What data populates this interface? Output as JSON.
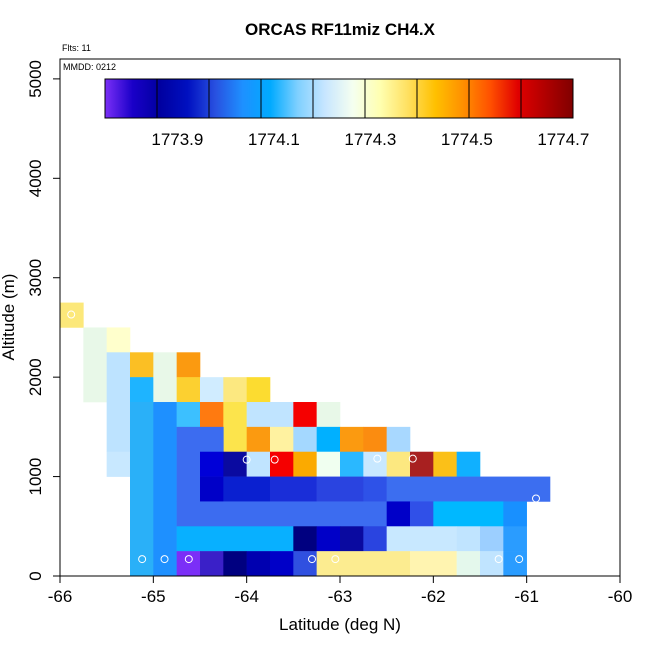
{
  "chart_data": {
    "type": "heatmap",
    "title": "ORCAS RF11miz CH4.X",
    "xlabel": "Latitude (deg N)",
    "ylabel": "Altitude (m)",
    "annotations": {
      "flights": "Flts: 11",
      "date": "MMDD: 0212"
    },
    "xlim": [
      -66,
      -60
    ],
    "ylim": [
      0,
      5200
    ],
    "xticks": [
      -66,
      -65,
      -64,
      -63,
      -62,
      -61,
      -60
    ],
    "yticks": [
      0,
      1000,
      2000,
      3000,
      4000,
      5000
    ],
    "colorbar": {
      "range": [
        1773.75,
        1774.72
      ],
      "ticks": [
        1773.9,
        1774.1,
        1774.3,
        1774.5,
        1774.7
      ],
      "tick_labels": [
        "1773.9",
        "1774.1",
        "1774.3",
        "1774.5",
        "1774.7"
      ],
      "colors": [
        "#7b2ff7",
        "#1a00c8",
        "#0000a0",
        "#0010c0",
        "#2850e0",
        "#1e90ff",
        "#00aaff",
        "#7fd0ff",
        "#c8e6ff",
        "#f5fff0",
        "#ffffb0",
        "#ffe060",
        "#ffc000",
        "#ff9000",
        "#ff5000",
        "#e00000",
        "#b00000",
        "#800000"
      ]
    },
    "cells": [
      {
        "lat": [
          -66.0,
          -65.75
        ],
        "alt": [
          2500,
          2750
        ],
        "color": "#fce87a"
      },
      {
        "lat": [
          -65.75,
          -65.5
        ],
        "alt": [
          1750,
          2500
        ],
        "color": "#e8f8e8"
      },
      {
        "lat": [
          -65.5,
          -65.25
        ],
        "alt": [
          2250,
          2500
        ],
        "color": "#ffffcc"
      },
      {
        "lat": [
          -65.5,
          -65.25
        ],
        "alt": [
          1250,
          2250
        ],
        "color": "#bde3ff"
      },
      {
        "lat": [
          -65.5,
          -65.25
        ],
        "alt": [
          1000,
          1250
        ],
        "color": "#c8e8ff"
      },
      {
        "lat": [
          -65.25,
          -65.0
        ],
        "alt": [
          2000,
          2250
        ],
        "color": "#fbbf24"
      },
      {
        "lat": [
          -65.25,
          -65.0
        ],
        "alt": [
          1750,
          2000
        ],
        "color": "#1eb4ff"
      },
      {
        "lat": [
          -65.25,
          -65.0
        ],
        "alt": [
          0,
          1750
        ],
        "color": "#2ab0f8"
      },
      {
        "lat": [
          -65.0,
          -64.75
        ],
        "alt": [
          2000,
          2250
        ],
        "color": "#e8f8e8"
      },
      {
        "lat": [
          -65.0,
          -64.75
        ],
        "alt": [
          1750,
          2000
        ],
        "color": "#e8f8e8"
      },
      {
        "lat": [
          -65.0,
          -64.75
        ],
        "alt": [
          0,
          1750
        ],
        "color": "#1e90ff"
      },
      {
        "lat": [
          -64.75,
          -64.5
        ],
        "alt": [
          2000,
          2250
        ],
        "color": "#fb9a10"
      },
      {
        "lat": [
          -64.75,
          -64.5
        ],
        "alt": [
          1750,
          2000
        ],
        "color": "#fcd030"
      },
      {
        "lat": [
          -64.75,
          -64.5
        ],
        "alt": [
          1500,
          1750
        ],
        "color": "#3cc0ff"
      },
      {
        "lat": [
          -64.5,
          -64.25
        ],
        "alt": [
          1750,
          2000
        ],
        "color": "#d0ecff"
      },
      {
        "lat": [
          -64.5,
          -64.25
        ],
        "alt": [
          1500,
          1750
        ],
        "color": "#ff7a10"
      },
      {
        "lat": [
          -64.25,
          -64.0
        ],
        "alt": [
          1750,
          2000
        ],
        "color": "#fce880"
      },
      {
        "lat": [
          -64.25,
          -64.0
        ],
        "alt": [
          1250,
          1750
        ],
        "color": "#fce44c"
      },
      {
        "lat": [
          -64.0,
          -63.75
        ],
        "alt": [
          1750,
          2000
        ],
        "color": "#fcdc30"
      },
      {
        "lat": [
          -64.0,
          -63.75
        ],
        "alt": [
          1500,
          1750
        ],
        "color": "#c0e4ff"
      },
      {
        "lat": [
          -64.0,
          -63.75
        ],
        "alt": [
          1250,
          1500
        ],
        "color": "#fb9a10"
      },
      {
        "lat": [
          -63.75,
          -63.5
        ],
        "alt": [
          1500,
          1750
        ],
        "color": "#c0e4ff"
      },
      {
        "lat": [
          -63.75,
          -63.5
        ],
        "alt": [
          1250,
          1500
        ],
        "color": "#fff2a0"
      },
      {
        "lat": [
          -63.5,
          -63.25
        ],
        "alt": [
          1500,
          1750
        ],
        "color": "#f50000"
      },
      {
        "lat": [
          -63.5,
          -63.25
        ],
        "alt": [
          1250,
          1500
        ],
        "color": "#a4d8ff"
      },
      {
        "lat": [
          -63.25,
          -63.0
        ],
        "alt": [
          1500,
          1750
        ],
        "color": "#e8f8e8"
      },
      {
        "lat": [
          -63.25,
          -63.0
        ],
        "alt": [
          1250,
          1500
        ],
        "color": "#00b0ff"
      },
      {
        "lat": [
          -63.0,
          -62.75
        ],
        "alt": [
          1250,
          1500
        ],
        "color": "#fb9a10"
      },
      {
        "lat": [
          -62.75,
          -62.5
        ],
        "alt": [
          1250,
          1500
        ],
        "color": "#fb8c10"
      },
      {
        "lat": [
          -62.5,
          -62.25
        ],
        "alt": [
          1250,
          1500
        ],
        "color": "#a8d8ff"
      },
      {
        "lat": [
          -64.75,
          -64.25
        ],
        "alt": [
          1250,
          1500
        ],
        "color": "#3c6cf0"
      },
      {
        "lat": [
          -64.75,
          -64.5
        ],
        "alt": [
          750,
          1250
        ],
        "color": "#3c6cf0"
      },
      {
        "lat": [
          -64.5,
          -64.25
        ],
        "alt": [
          1000,
          1250
        ],
        "color": "#0000d8"
      },
      {
        "lat": [
          -64.25,
          -64.0
        ],
        "alt": [
          1000,
          1250
        ],
        "color": "#0a0aa0"
      },
      {
        "lat": [
          -64.0,
          -63.75
        ],
        "alt": [
          1000,
          1250
        ],
        "color": "#c0e4ff"
      },
      {
        "lat": [
          -63.75,
          -63.5
        ],
        "alt": [
          1000,
          1250
        ],
        "color": "#f50000"
      },
      {
        "lat": [
          -63.5,
          -63.25
        ],
        "alt": [
          1000,
          1250
        ],
        "color": "#fbaa00"
      },
      {
        "lat": [
          -63.25,
          -63.0
        ],
        "alt": [
          1000,
          1250
        ],
        "color": "#f0fff0"
      },
      {
        "lat": [
          -63.0,
          -62.75
        ],
        "alt": [
          1000,
          1250
        ],
        "color": "#2ab8ff"
      },
      {
        "lat": [
          -62.75,
          -62.5
        ],
        "alt": [
          1000,
          1250
        ],
        "color": "#c8e8ff"
      },
      {
        "lat": [
          -62.5,
          -62.25
        ],
        "alt": [
          1000,
          1250
        ],
        "color": "#fce880"
      },
      {
        "lat": [
          -62.25,
          -62.0
        ],
        "alt": [
          1000,
          1250
        ],
        "color": "#a82020"
      },
      {
        "lat": [
          -62.0,
          -61.75
        ],
        "alt": [
          1000,
          1250
        ],
        "color": "#fbc018"
      },
      {
        "lat": [
          -61.75,
          -61.5
        ],
        "alt": [
          1000,
          1250
        ],
        "color": "#10b0ff"
      },
      {
        "lat": [
          -64.5,
          -64.25
        ],
        "alt": [
          750,
          1000
        ],
        "color": "#0000c8"
      },
      {
        "lat": [
          -64.25,
          -63.75
        ],
        "alt": [
          750,
          1000
        ],
        "color": "#0a20d0"
      },
      {
        "lat": [
          -63.75,
          -63.25
        ],
        "alt": [
          750,
          1000
        ],
        "color": "#1a2ed8"
      },
      {
        "lat": [
          -63.25,
          -62.75
        ],
        "alt": [
          750,
          1000
        ],
        "color": "#2a44e0"
      },
      {
        "lat": [
          -62.75,
          -62.5
        ],
        "alt": [
          750,
          1000
        ],
        "color": "#2e52e8"
      },
      {
        "lat": [
          -62.5,
          -60.75
        ],
        "alt": [
          750,
          1000
        ],
        "color": "#3c6ef0"
      },
      {
        "lat": [
          -64.75,
          -62.5
        ],
        "alt": [
          500,
          750
        ],
        "color": "#3c6cf0"
      },
      {
        "lat": [
          -62.5,
          -62.25
        ],
        "alt": [
          500,
          750
        ],
        "color": "#0000c8"
      },
      {
        "lat": [
          -62.25,
          -62.0
        ],
        "alt": [
          500,
          750
        ],
        "color": "#3050e8"
      },
      {
        "lat": [
          -62.0,
          -61.25
        ],
        "alt": [
          500,
          750
        ],
        "color": "#00b8ff"
      },
      {
        "lat": [
          -61.25,
          -61.0
        ],
        "alt": [
          500,
          750
        ],
        "color": "#1890ff"
      },
      {
        "lat": [
          -64.75,
          -63.5
        ],
        "alt": [
          250,
          500
        ],
        "color": "#08b0ff"
      },
      {
        "lat": [
          -63.5,
          -63.25
        ],
        "alt": [
          250,
          500
        ],
        "color": "#000080"
      },
      {
        "lat": [
          -63.25,
          -63.0
        ],
        "alt": [
          250,
          500
        ],
        "color": "#0000c8"
      },
      {
        "lat": [
          -63.0,
          -62.75
        ],
        "alt": [
          250,
          500
        ],
        "color": "#0a0aa0"
      },
      {
        "lat": [
          -62.75,
          -62.5
        ],
        "alt": [
          250,
          500
        ],
        "color": "#2a44e0"
      },
      {
        "lat": [
          -62.5,
          -61.75
        ],
        "alt": [
          250,
          500
        ],
        "color": "#c8e8ff"
      },
      {
        "lat": [
          -61.75,
          -61.5
        ],
        "alt": [
          250,
          500
        ],
        "color": "#c0e4ff"
      },
      {
        "lat": [
          -61.5,
          -61.25
        ],
        "alt": [
          250,
          500
        ],
        "color": "#9ccfff"
      },
      {
        "lat": [
          -61.25,
          -61.0
        ],
        "alt": [
          250,
          500
        ],
        "color": "#2a9cff"
      },
      {
        "lat": [
          -64.75,
          -64.5
        ],
        "alt": [
          0,
          250
        ],
        "color": "#7b2ff7"
      },
      {
        "lat": [
          -64.5,
          -64.25
        ],
        "alt": [
          0,
          250
        ],
        "color": "#3a20c8"
      },
      {
        "lat": [
          -64.25,
          -64.0
        ],
        "alt": [
          0,
          250
        ],
        "color": "#000080"
      },
      {
        "lat": [
          -64.0,
          -63.75
        ],
        "alt": [
          0,
          250
        ],
        "color": "#0000b0"
      },
      {
        "lat": [
          -63.75,
          -63.5
        ],
        "alt": [
          0,
          250
        ],
        "color": "#0000c8"
      },
      {
        "lat": [
          -63.5,
          -63.25
        ],
        "alt": [
          0,
          250
        ],
        "color": "#3050e0"
      },
      {
        "lat": [
          -63.25,
          -62.25
        ],
        "alt": [
          0,
          250
        ],
        "color": "#fcec90"
      },
      {
        "lat": [
          -62.25,
          -61.75
        ],
        "alt": [
          0,
          250
        ],
        "color": "#fff4b0"
      },
      {
        "lat": [
          -61.75,
          -61.5
        ],
        "alt": [
          0,
          250
        ],
        "color": "#e4f8ec"
      },
      {
        "lat": [
          -61.5,
          -61.25
        ],
        "alt": [
          0,
          250
        ],
        "color": "#c0e4ff"
      },
      {
        "lat": [
          -61.25,
          -61.0
        ],
        "alt": [
          0,
          250
        ],
        "color": "#2a9cff"
      }
    ],
    "markers": [
      {
        "lat": -65.88,
        "alt": 2630
      },
      {
        "lat": -65.12,
        "alt": 170
      },
      {
        "lat": -64.88,
        "alt": 170
      },
      {
        "lat": -64.62,
        "alt": 170
      },
      {
        "lat": -64.0,
        "alt": 1170
      },
      {
        "lat": -63.7,
        "alt": 1170
      },
      {
        "lat": -63.3,
        "alt": 170
      },
      {
        "lat": -63.05,
        "alt": 170
      },
      {
        "lat": -62.6,
        "alt": 1180
      },
      {
        "lat": -62.22,
        "alt": 1180
      },
      {
        "lat": -61.3,
        "alt": 170
      },
      {
        "lat": -61.08,
        "alt": 170
      },
      {
        "lat": -60.9,
        "alt": 780
      }
    ]
  }
}
